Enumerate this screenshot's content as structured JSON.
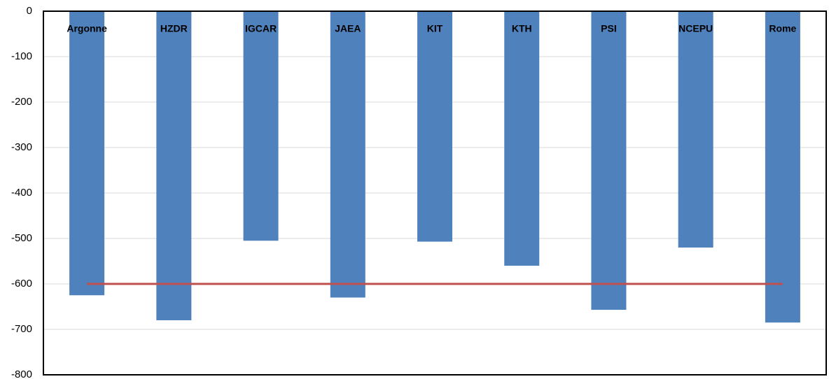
{
  "chart_data": {
    "type": "bar",
    "categories": [
      "Argonne",
      "HZDR",
      "IGCAR",
      "JAEA",
      "KIT",
      "KTH",
      "PSI",
      "NCEPU",
      "Rome"
    ],
    "series": [
      {
        "type": "bar",
        "color": "#4f81bd",
        "values": [
          -625,
          -680,
          -505,
          -630,
          -507,
          -560,
          -657,
          -520,
          -685
        ]
      },
      {
        "type": "line",
        "color": "#c0504d",
        "values": [
          -600,
          -600,
          -600,
          -600,
          -600,
          -600,
          -600,
          -600,
          -600
        ]
      }
    ],
    "ylim": [
      -800,
      0
    ],
    "yticks": [
      -800,
      -700,
      -600,
      -500,
      -400,
      -300,
      -200,
      -100,
      0
    ],
    "grid": true
  }
}
